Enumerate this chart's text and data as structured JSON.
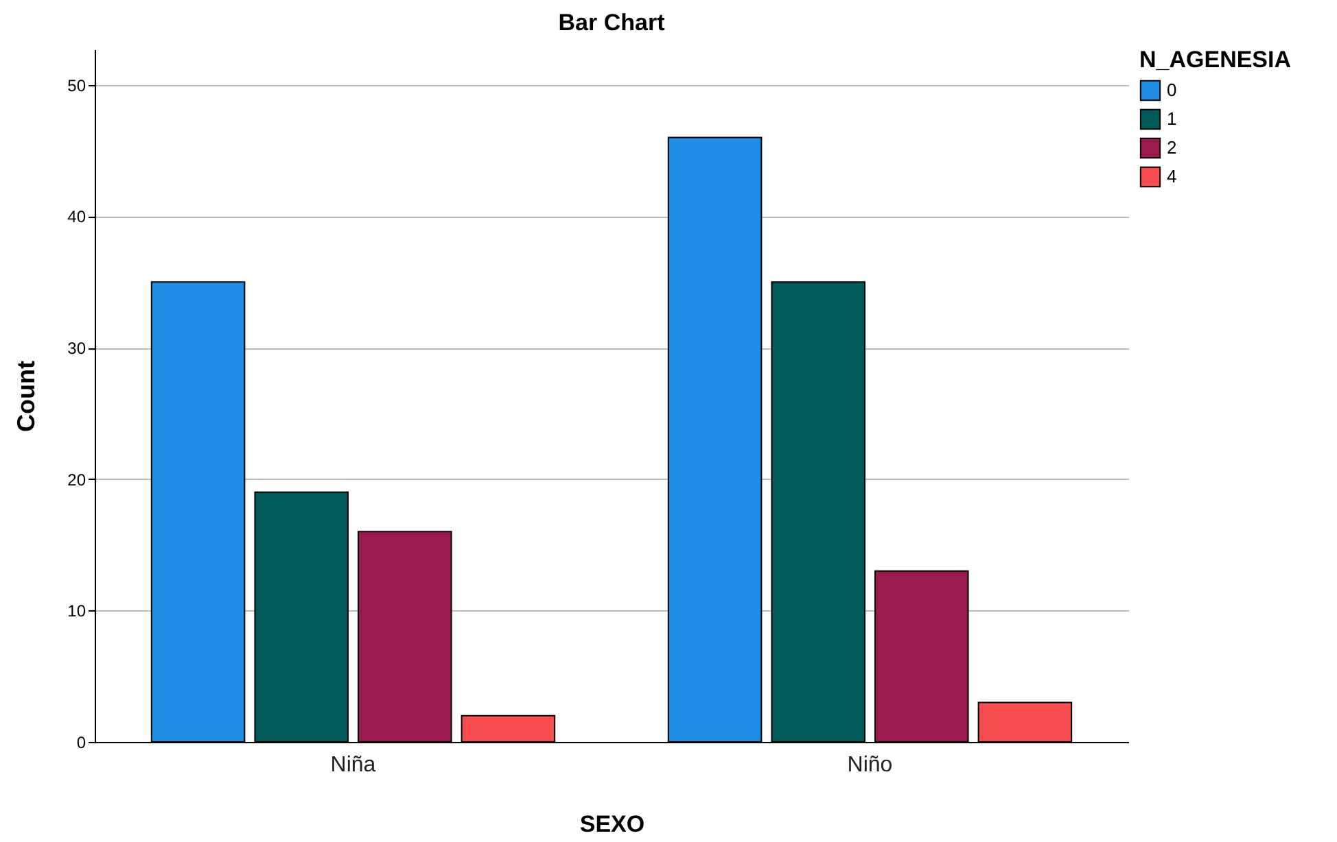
{
  "chart_data": {
    "type": "bar",
    "title": "Bar Chart",
    "xlabel": "SEXO",
    "ylabel": "Count",
    "legend_title": "N_AGENESIA",
    "categories": [
      "Niña",
      "Niño"
    ],
    "series": [
      {
        "name": "0",
        "color": "#1f8fe5",
        "values": [
          35,
          46
        ]
      },
      {
        "name": "1",
        "color": "#005a5a",
        "values": [
          19,
          35
        ]
      },
      {
        "name": "2",
        "color": "#9a1a4e",
        "values": [
          16,
          13
        ]
      },
      {
        "name": "4",
        "color": "#f64c50",
        "values": [
          2,
          3
        ]
      }
    ],
    "ylim": [
      0,
      52.7
    ],
    "yticks": [
      0,
      10,
      20,
      30,
      40,
      50
    ],
    "grid": "y",
    "legend": "top right"
  }
}
